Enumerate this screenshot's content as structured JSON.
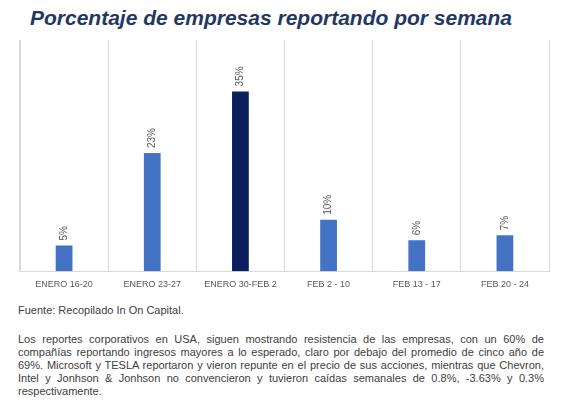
{
  "chart_data": {
    "type": "bar",
    "title": "Porcentaje de empresas reportando por semana",
    "categories": [
      "ENERO 16-20",
      "ENERO 23-27",
      "ENERO 30-FEB 2",
      "FEB 2 - 10",
      "FEB 13 - 17",
      "FEB 20 - 24"
    ],
    "values": [
      5,
      23,
      35,
      10,
      6,
      7
    ],
    "value_labels": [
      "5%",
      "23%",
      "35%",
      "10%",
      "6%",
      "7%"
    ],
    "colors": [
      "#4472c4",
      "#4472c4",
      "#0c1f5c",
      "#4472c4",
      "#4472c4",
      "#4472c4"
    ],
    "ylim": [
      0,
      45
    ],
    "grid": true,
    "data_labels": true,
    "tick_labels": "x",
    "annotations": [
      "Fuente: Recopilado In On Capital.",
      "Los reportes corporativos en USA, siguen mostrando resistencia de las empresas, con un 60% de compañías reportando ingresos mayores a lo esperado, claro por debajo del promedio de cinco año de 69%. Microsoft y TESLA reportaron y vieron repunte en el precio de sus acciones, mientras que Chevron, Intel y Jonhson & Jonhson no convencieron y tuvieron caídas semanales de 0.8%, -3.63% y 0.3% respectivamente."
    ]
  }
}
